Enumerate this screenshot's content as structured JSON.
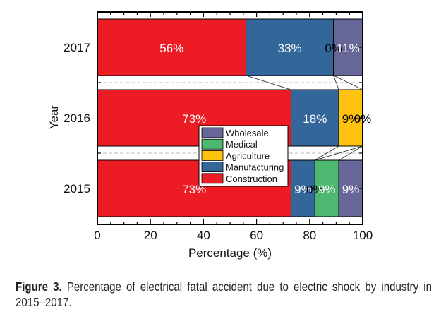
{
  "chart_data": {
    "type": "bar",
    "orientation": "horizontal",
    "stacked": true,
    "title": "",
    "xlabel": "Percentage (%)",
    "ylabel": "Year",
    "xlim": [
      0,
      100
    ],
    "x_ticks": [
      0,
      20,
      40,
      60,
      80,
      100
    ],
    "categories": [
      "2017",
      "2016",
      "2015"
    ],
    "series": [
      {
        "name": "Construction",
        "color": "#ED1C24",
        "values": [
          56,
          73,
          73
        ],
        "labels": [
          "56%",
          "73%",
          "73%"
        ],
        "label_color": "#ffffff"
      },
      {
        "name": "Manufacturing",
        "color": "#336699",
        "values": [
          33,
          18,
          9
        ],
        "labels": [
          "33%",
          "18%",
          "9%"
        ],
        "label_color": "#ffffff"
      },
      {
        "name": "Agriculture",
        "color": "#FFC20E",
        "values": [
          0,
          9,
          0
        ],
        "labels": [
          "0%",
          "9%",
          "0%"
        ],
        "label_color": "#000000"
      },
      {
        "name": "Medical",
        "color": "#4DB870",
        "values": [
          0,
          0,
          9
        ],
        "labels": [
          "",
          "0%",
          "9%"
        ],
        "label_color": "#ffffff"
      },
      {
        "name": "Wholesale",
        "color": "#666699",
        "values": [
          11,
          0,
          9
        ],
        "labels": [
          "11%",
          "0%",
          "9%"
        ],
        "label_color": "#ffffff"
      }
    ],
    "legend": {
      "placement": "center",
      "entries": [
        "Wholesale",
        "Medical",
        "Agriculture",
        "Manufacturing",
        "Construction"
      ]
    },
    "grid": false
  },
  "caption": {
    "label": "Figure 3.",
    "text": " Percentage of electrical fatal accident due to electric shock by industry in 2015–2017."
  }
}
